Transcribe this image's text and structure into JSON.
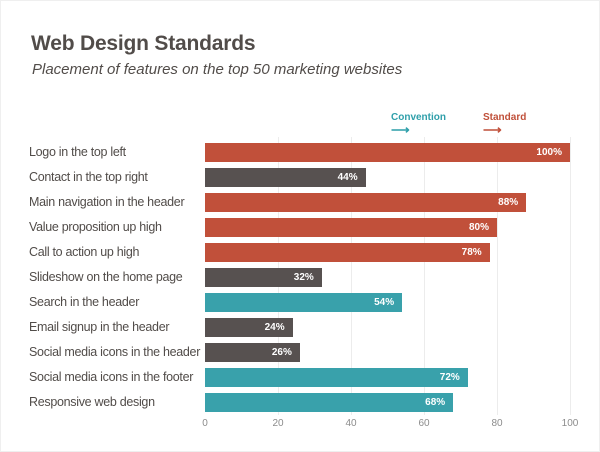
{
  "header": {
    "title": "Web Design Standards",
    "subtitle": "Placement of features on the top 50 marketing websites"
  },
  "legend": {
    "convention": {
      "label": "Convention",
      "color": "#2f9faa"
    },
    "standard": {
      "label": "Standard",
      "color": "#c0503a"
    },
    "arrow": "⟶"
  },
  "colors": {
    "standard": "#c1503a",
    "convention": "#39a1ab",
    "neutral": "#575150",
    "heading_text": "#514c49",
    "grid": "#ececec",
    "tick_text": "#8c8c8c",
    "value_text": "#ffffff"
  },
  "chart_data": {
    "type": "bar",
    "orientation": "horizontal",
    "title": "Web Design Standards",
    "subtitle": "Placement of features on the top 50 marketing websites",
    "categories": [
      "Logo in the top left",
      "Contact in the top right",
      "Main navigation in the header",
      "Value proposition up high",
      "Call to action up high",
      "Slideshow on the home page",
      "Search in the header",
      "Email signup in the header",
      "Social media icons in the header",
      "Social media icons in the footer",
      "Responsive web design"
    ],
    "values": [
      100,
      44,
      88,
      80,
      78,
      32,
      54,
      24,
      26,
      72,
      68
    ],
    "value_labels": [
      "100%",
      "44%",
      "88%",
      "80%",
      "78%",
      "32%",
      "54%",
      "24%",
      "26%",
      "72%",
      "68%"
    ],
    "series_key": [
      "standard",
      "neutral",
      "standard",
      "standard",
      "standard",
      "neutral",
      "convention",
      "neutral",
      "neutral",
      "convention",
      "convention"
    ],
    "xlim": [
      0,
      100
    ],
    "x_ticks": [
      0,
      20,
      40,
      60,
      80,
      100
    ],
    "grid": true,
    "legend_entries": [
      "Convention",
      "Standard"
    ],
    "legend_position": "top-right"
  }
}
